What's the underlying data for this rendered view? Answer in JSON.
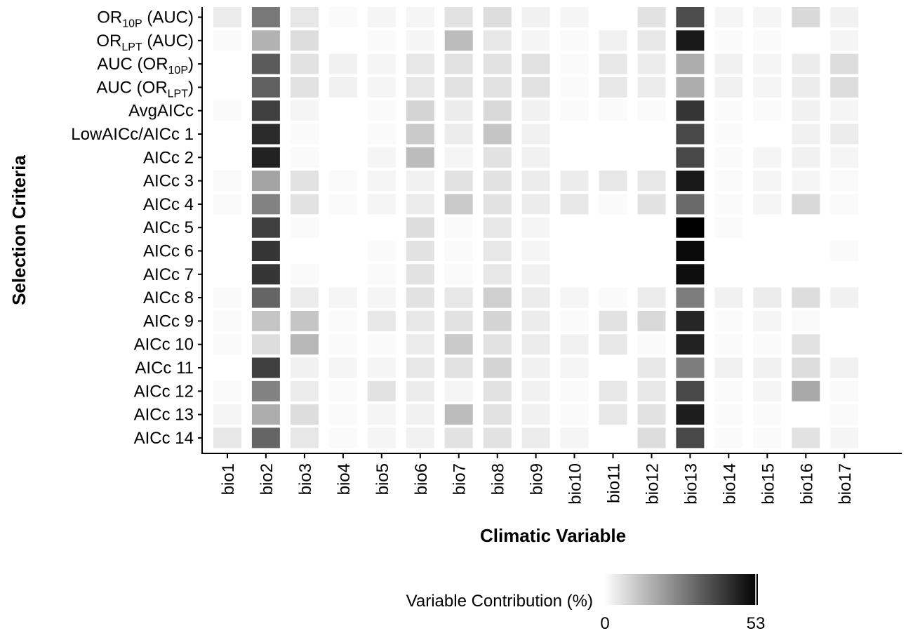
{
  "chart_data": {
    "type": "heatmap",
    "xlabel": "Climatic Variable",
    "ylabel": "Selection Criteria",
    "x_categories": [
      "bio1",
      "bio2",
      "bio3",
      "bio4",
      "bio5",
      "bio6",
      "bio7",
      "bio8",
      "bio9",
      "bio10",
      "bio11",
      "bio12",
      "bio13",
      "bio14",
      "bio15",
      "bio16",
      "bio17"
    ],
    "y_categories": [
      {
        "main": "OR",
        "sub": "10P",
        "suffix": " (AUC)"
      },
      {
        "main": "OR",
        "sub": "LPT",
        "suffix": " (AUC)"
      },
      {
        "main": "AUC (OR",
        "sub": "10P",
        "suffix": ")"
      },
      {
        "main": "AUC (OR",
        "sub": "LPT",
        "suffix": ")"
      },
      {
        "main": "AvgAICc",
        "sub": "",
        "suffix": ""
      },
      {
        "main": "LowAICc/AICc 1",
        "sub": "",
        "suffix": ""
      },
      {
        "main": "AICc 2",
        "sub": "",
        "suffix": ""
      },
      {
        "main": "AICc 3",
        "sub": "",
        "suffix": ""
      },
      {
        "main": "AICc 4",
        "sub": "",
        "suffix": ""
      },
      {
        "main": "AICc 5",
        "sub": "",
        "suffix": ""
      },
      {
        "main": "AICc 6",
        "sub": "",
        "suffix": ""
      },
      {
        "main": "AICc 7",
        "sub": "",
        "suffix": ""
      },
      {
        "main": "AICc 8",
        "sub": "",
        "suffix": ""
      },
      {
        "main": "AICc 9",
        "sub": "",
        "suffix": ""
      },
      {
        "main": "AICc 10",
        "sub": "",
        "suffix": ""
      },
      {
        "main": "AICc 11",
        "sub": "",
        "suffix": ""
      },
      {
        "main": "AICc 12",
        "sub": "",
        "suffix": ""
      },
      {
        "main": "AICc 13",
        "sub": "",
        "suffix": ""
      },
      {
        "main": "AICc 14",
        "sub": "",
        "suffix": ""
      }
    ],
    "values": [
      [
        4,
        28,
        5,
        1,
        2,
        2,
        6,
        7,
        3,
        2,
        0,
        6,
        37,
        2,
        2,
        8,
        3
      ],
      [
        1,
        16,
        7,
        0,
        1,
        2,
        14,
        5,
        2,
        1,
        3,
        5,
        48,
        1,
        1,
        0,
        2
      ],
      [
        0,
        34,
        6,
        3,
        2,
        5,
        6,
        6,
        6,
        1,
        5,
        4,
        17,
        3,
        2,
        4,
        7
      ],
      [
        0,
        33,
        6,
        3,
        2,
        5,
        6,
        6,
        6,
        1,
        5,
        4,
        17,
        3,
        2,
        4,
        7
      ],
      [
        1,
        40,
        2,
        0,
        1,
        9,
        4,
        8,
        3,
        1,
        1,
        1,
        42,
        1,
        1,
        3,
        2
      ],
      [
        0,
        44,
        1,
        0,
        1,
        11,
        4,
        12,
        3,
        0,
        0,
        0,
        38,
        1,
        0,
        3,
        4
      ],
      [
        0,
        46,
        1,
        0,
        2,
        14,
        2,
        6,
        3,
        0,
        0,
        0,
        38,
        1,
        2,
        3,
        2
      ],
      [
        1,
        19,
        6,
        1,
        2,
        3,
        6,
        6,
        4,
        4,
        5,
        5,
        48,
        1,
        2,
        2,
        1
      ],
      [
        1,
        26,
        6,
        1,
        2,
        4,
        11,
        6,
        4,
        5,
        1,
        6,
        31,
        1,
        2,
        8,
        1
      ],
      [
        0,
        40,
        1,
        0,
        0,
        7,
        1,
        5,
        2,
        0,
        0,
        0,
        53,
        1,
        0,
        0,
        0
      ],
      [
        0,
        42,
        0,
        0,
        1,
        6,
        1,
        5,
        2,
        0,
        0,
        0,
        51,
        0,
        0,
        0,
        1
      ],
      [
        0,
        42,
        1,
        0,
        1,
        6,
        1,
        5,
        3,
        0,
        0,
        0,
        50,
        0,
        0,
        0,
        0
      ],
      [
        1,
        32,
        4,
        2,
        2,
        6,
        5,
        10,
        4,
        2,
        1,
        4,
        27,
        3,
        4,
        7,
        3
      ],
      [
        1,
        12,
        12,
        1,
        5,
        5,
        6,
        9,
        4,
        1,
        6,
        8,
        45,
        1,
        2,
        1,
        0
      ],
      [
        1,
        7,
        15,
        1,
        1,
        4,
        11,
        6,
        4,
        3,
        5,
        1,
        46,
        1,
        1,
        6,
        0
      ],
      [
        0,
        40,
        3,
        2,
        2,
        5,
        6,
        9,
        3,
        2,
        0,
        5,
        27,
        3,
        3,
        7,
        3
      ],
      [
        1,
        26,
        4,
        1,
        6,
        4,
        2,
        6,
        3,
        1,
        5,
        5,
        38,
        1,
        2,
        18,
        1
      ],
      [
        2,
        17,
        7,
        1,
        2,
        3,
        14,
        6,
        3,
        1,
        5,
        6,
        47,
        1,
        1,
        0,
        1
      ],
      [
        5,
        32,
        5,
        1,
        2,
        3,
        6,
        6,
        4,
        2,
        0,
        7,
        38,
        1,
        1,
        6,
        2
      ]
    ],
    "colorbar": {
      "title": "Variable Contribution (%)",
      "min": 0,
      "max": 53,
      "min_label": "0",
      "max_label": "53",
      "low_color": "#ffffff",
      "high_color": "#000000"
    }
  }
}
